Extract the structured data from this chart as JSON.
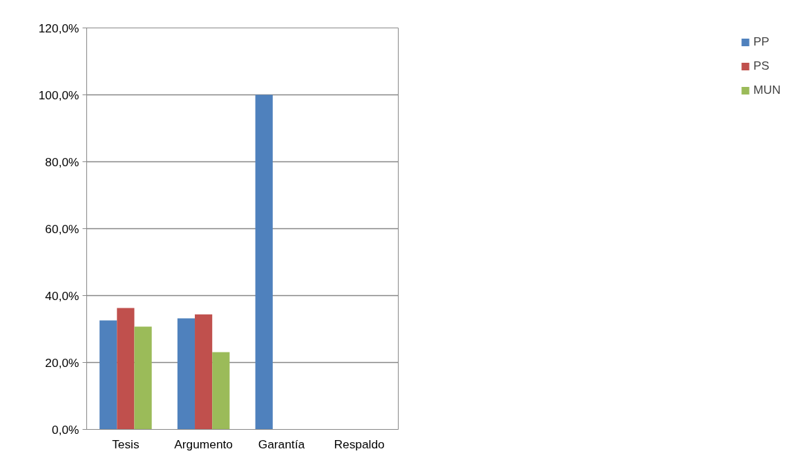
{
  "chart_data": {
    "type": "bar",
    "categories": [
      "Tesis",
      "Argumento",
      "Garantía",
      "Respaldo"
    ],
    "series": [
      {
        "name": "PP",
        "color": "#4f81bd",
        "values": [
          32.6,
          33.2,
          100,
          0
        ]
      },
      {
        "name": "PS",
        "color": "#c0504d",
        "values": [
          36.3,
          34.4,
          0,
          0
        ]
      },
      {
        "name": "MUN",
        "color": "#9bbb59",
        "values": [
          30.7,
          23.1,
          0,
          0
        ]
      }
    ],
    "ylim": [
      0,
      120
    ],
    "yticks": [
      {
        "value": 0,
        "label": "0,0%"
      },
      {
        "value": 20,
        "label": "20,0%"
      },
      {
        "value": 40,
        "label": "40,0%"
      },
      {
        "value": 60,
        "label": "60,0%"
      },
      {
        "value": 80,
        "label": "80,0%"
      },
      {
        "value": 100,
        "label": "100,0%"
      },
      {
        "value": 120,
        "label": "120,0%"
      }
    ],
    "grid": "y",
    "legend": "right"
  }
}
